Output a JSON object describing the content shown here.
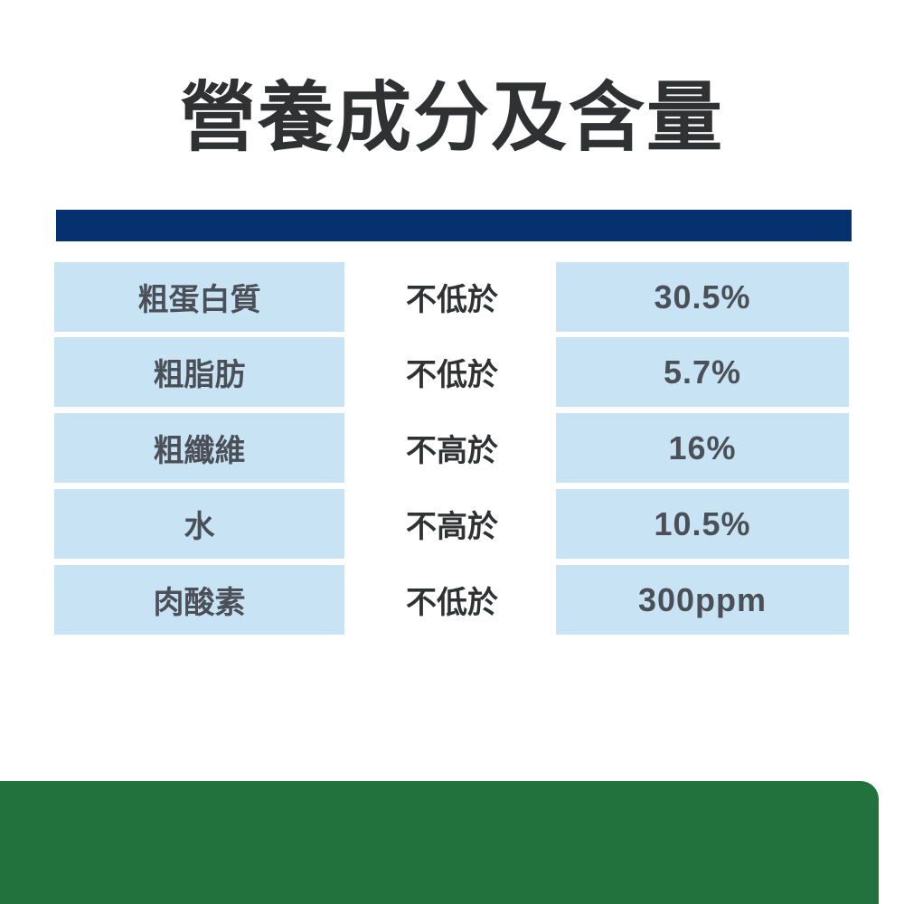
{
  "title": "營養成分及含量",
  "colors": {
    "header_bar": "#05326e",
    "cell_bg": "#c8e3f4",
    "footer_block": "#21723d"
  },
  "rows": [
    {
      "nutrient": "粗蛋白質",
      "condition": "不低於",
      "value": "30.5%"
    },
    {
      "nutrient": "粗脂肪",
      "condition": "不低於",
      "value": "5.7%"
    },
    {
      "nutrient": "粗纖維",
      "condition": "不高於",
      "value": "16%"
    },
    {
      "nutrient": "水",
      "condition": "不高於",
      "value": "10.5%"
    },
    {
      "nutrient": "肉酸素",
      "condition": "不低於",
      "value": "300ppm"
    }
  ]
}
